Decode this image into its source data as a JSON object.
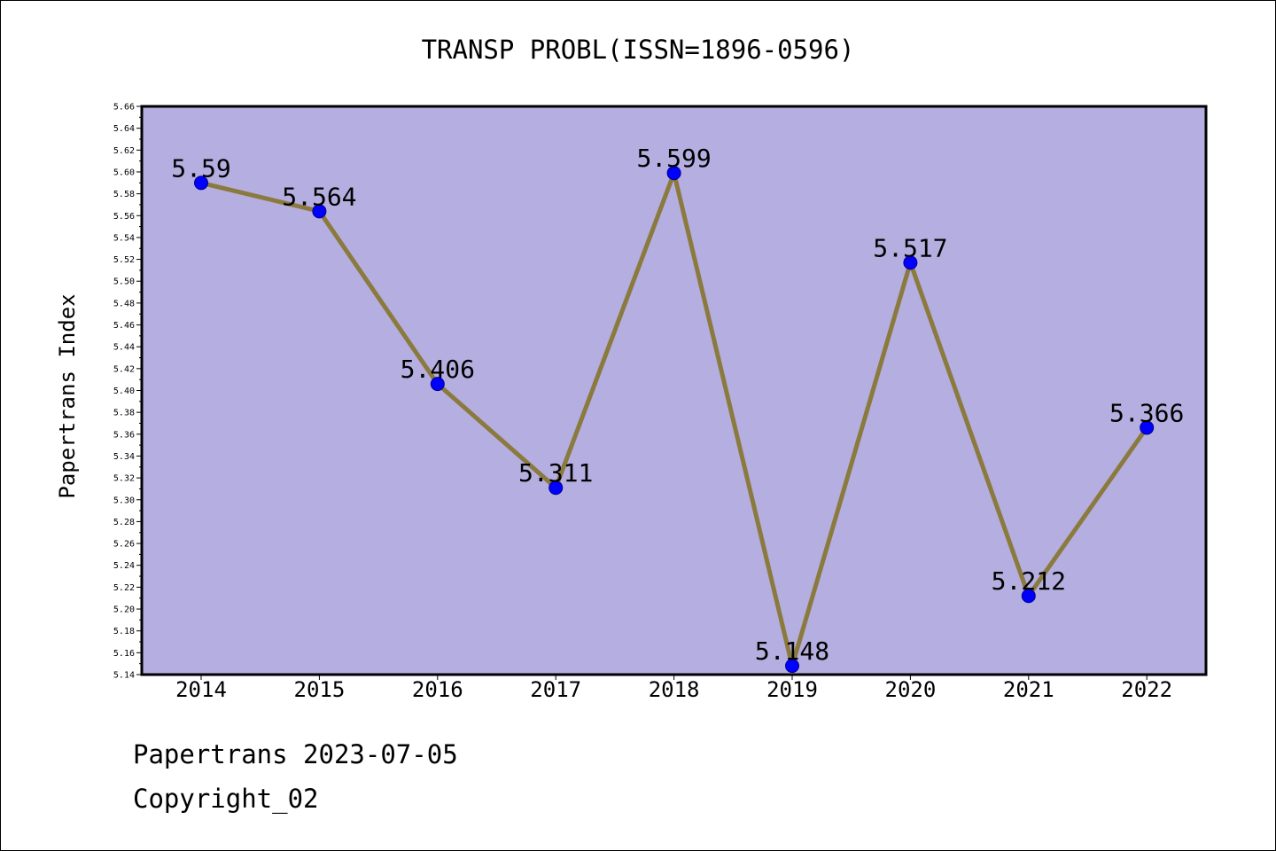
{
  "chart_data": {
    "type": "line",
    "title": "TRANSP PROBL(ISSN=1896-0596)",
    "ylabel": "Papertrans Index",
    "xlabel": "",
    "categories": [
      "2014",
      "2015",
      "2016",
      "2017",
      "2018",
      "2019",
      "2020",
      "2021",
      "2022"
    ],
    "values": [
      5.59,
      5.564,
      5.406,
      5.311,
      5.599,
      5.148,
      5.517,
      5.212,
      5.366
    ],
    "value_labels": [
      "5.59",
      "5.564",
      "5.406",
      "5.311",
      "5.599",
      "5.148",
      "5.517",
      "5.212",
      "5.366"
    ],
    "ylim": [
      5.14,
      5.66
    ],
    "yticks": [
      "5.14",
      "5.16",
      "5.18",
      "5.20",
      "5.22",
      "5.24",
      "5.26",
      "5.28",
      "5.30",
      "5.32",
      "5.34",
      "5.36",
      "5.38",
      "5.40",
      "5.42",
      "5.44",
      "5.46",
      "5.48",
      "5.50",
      "5.52",
      "5.54",
      "5.56",
      "5.58",
      "5.60",
      "5.62",
      "5.64",
      "5.66"
    ],
    "grid": false,
    "colors": {
      "plot_background": "#b5aee0",
      "line": "#8b7a3e",
      "marker": "#0000ff",
      "marker_edge": "#00008b"
    }
  },
  "footer": {
    "line1": "Papertrans 2023-07-05",
    "line2": "Copyright_02"
  }
}
